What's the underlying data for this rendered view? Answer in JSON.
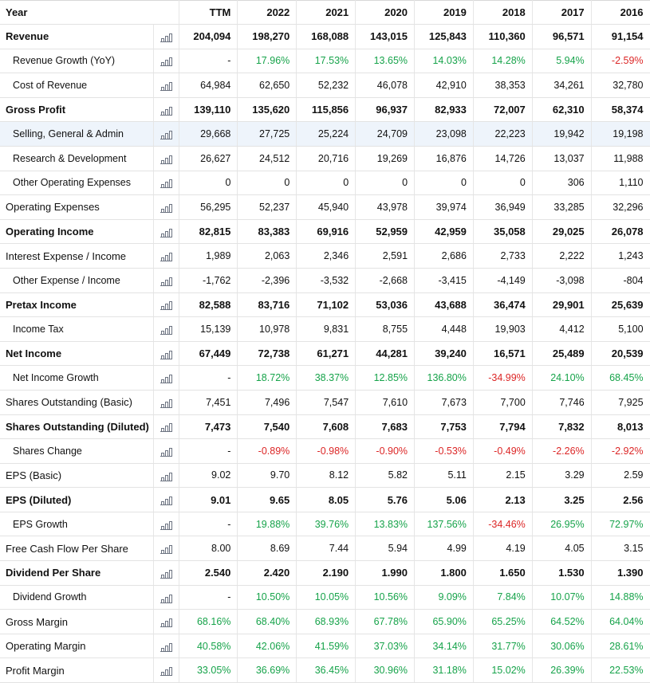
{
  "header": {
    "label": "Year",
    "columns": [
      "TTM",
      "2022",
      "2021",
      "2020",
      "2019",
      "2018",
      "2017",
      "2016"
    ]
  },
  "rows": [
    {
      "label": "Revenue",
      "bold": true,
      "sub": false,
      "values": [
        "204,094",
        "198,270",
        "168,088",
        "143,015",
        "125,843",
        "110,360",
        "96,571",
        "91,154"
      ]
    },
    {
      "label": "Revenue Growth (YoY)",
      "bold": false,
      "sub": true,
      "values": [
        "-",
        "17.96%",
        "17.53%",
        "13.65%",
        "14.03%",
        "14.28%",
        "5.94%",
        "-2.59%"
      ]
    },
    {
      "label": "Cost of Revenue",
      "bold": false,
      "sub": true,
      "values": [
        "64,984",
        "62,650",
        "52,232",
        "46,078",
        "42,910",
        "38,353",
        "34,261",
        "32,780"
      ]
    },
    {
      "label": "Gross Profit",
      "bold": true,
      "sub": false,
      "values": [
        "139,110",
        "135,620",
        "115,856",
        "96,937",
        "82,933",
        "72,007",
        "62,310",
        "58,374"
      ]
    },
    {
      "label": "Selling, General & Admin",
      "bold": false,
      "sub": true,
      "highlight": true,
      "values": [
        "29,668",
        "27,725",
        "25,224",
        "24,709",
        "23,098",
        "22,223",
        "19,942",
        "19,198"
      ]
    },
    {
      "label": "Research & Development",
      "bold": false,
      "sub": true,
      "values": [
        "26,627",
        "24,512",
        "20,716",
        "19,269",
        "16,876",
        "14,726",
        "13,037",
        "11,988"
      ]
    },
    {
      "label": "Other Operating Expenses",
      "bold": false,
      "sub": true,
      "values": [
        "0",
        "0",
        "0",
        "0",
        "0",
        "0",
        "306",
        "1,110"
      ]
    },
    {
      "label": "Operating Expenses",
      "bold": false,
      "sub": false,
      "values": [
        "56,295",
        "52,237",
        "45,940",
        "43,978",
        "39,974",
        "36,949",
        "33,285",
        "32,296"
      ]
    },
    {
      "label": "Operating Income",
      "bold": true,
      "sub": false,
      "values": [
        "82,815",
        "83,383",
        "69,916",
        "52,959",
        "42,959",
        "35,058",
        "29,025",
        "26,078"
      ]
    },
    {
      "label": "Interest Expense / Income",
      "bold": false,
      "sub": false,
      "values": [
        "1,989",
        "2,063",
        "2,346",
        "2,591",
        "2,686",
        "2,733",
        "2,222",
        "1,243"
      ]
    },
    {
      "label": "Other Expense / Income",
      "bold": false,
      "sub": true,
      "values": [
        "-1,762",
        "-2,396",
        "-3,532",
        "-2,668",
        "-3,415",
        "-4,149",
        "-3,098",
        "-804"
      ]
    },
    {
      "label": "Pretax Income",
      "bold": true,
      "sub": false,
      "values": [
        "82,588",
        "83,716",
        "71,102",
        "53,036",
        "43,688",
        "36,474",
        "29,901",
        "25,639"
      ]
    },
    {
      "label": "Income Tax",
      "bold": false,
      "sub": true,
      "values": [
        "15,139",
        "10,978",
        "9,831",
        "8,755",
        "4,448",
        "19,903",
        "4,412",
        "5,100"
      ]
    },
    {
      "label": "Net Income",
      "bold": true,
      "sub": false,
      "values": [
        "67,449",
        "72,738",
        "61,271",
        "44,281",
        "39,240",
        "16,571",
        "25,489",
        "20,539"
      ]
    },
    {
      "label": "Net Income Growth",
      "bold": false,
      "sub": true,
      "values": [
        "-",
        "18.72%",
        "38.37%",
        "12.85%",
        "136.80%",
        "-34.99%",
        "24.10%",
        "68.45%"
      ]
    },
    {
      "label": "Shares Outstanding (Basic)",
      "bold": false,
      "sub": false,
      "values": [
        "7,451",
        "7,496",
        "7,547",
        "7,610",
        "7,673",
        "7,700",
        "7,746",
        "7,925"
      ]
    },
    {
      "label": "Shares Outstanding (Diluted)",
      "bold": true,
      "sub": false,
      "values": [
        "7,473",
        "7,540",
        "7,608",
        "7,683",
        "7,753",
        "7,794",
        "7,832",
        "8,013"
      ]
    },
    {
      "label": "Shares Change",
      "bold": false,
      "sub": true,
      "values": [
        "-",
        "-0.89%",
        "-0.98%",
        "-0.90%",
        "-0.53%",
        "-0.49%",
        "-2.26%",
        "-2.92%"
      ]
    },
    {
      "label": "EPS (Basic)",
      "bold": false,
      "sub": false,
      "values": [
        "9.02",
        "9.70",
        "8.12",
        "5.82",
        "5.11",
        "2.15",
        "3.29",
        "2.59"
      ]
    },
    {
      "label": "EPS (Diluted)",
      "bold": true,
      "sub": false,
      "values": [
        "9.01",
        "9.65",
        "8.05",
        "5.76",
        "5.06",
        "2.13",
        "3.25",
        "2.56"
      ]
    },
    {
      "label": "EPS Growth",
      "bold": false,
      "sub": true,
      "values": [
        "-",
        "19.88%",
        "39.76%",
        "13.83%",
        "137.56%",
        "-34.46%",
        "26.95%",
        "72.97%"
      ]
    },
    {
      "label": "Free Cash Flow Per Share",
      "bold": false,
      "sub": false,
      "values": [
        "8.00",
        "8.69",
        "7.44",
        "5.94",
        "4.99",
        "4.19",
        "4.05",
        "3.15"
      ]
    },
    {
      "label": "Dividend Per Share",
      "bold": true,
      "sub": false,
      "values": [
        "2.540",
        "2.420",
        "2.190",
        "1.990",
        "1.800",
        "1.650",
        "1.530",
        "1.390"
      ]
    },
    {
      "label": "Dividend Growth",
      "bold": false,
      "sub": true,
      "values": [
        "-",
        "10.50%",
        "10.05%",
        "10.56%",
        "9.09%",
        "7.84%",
        "10.07%",
        "14.88%"
      ]
    },
    {
      "label": "Gross Margin",
      "bold": false,
      "sub": false,
      "values": [
        "68.16%",
        "68.40%",
        "68.93%",
        "67.78%",
        "65.90%",
        "65.25%",
        "64.52%",
        "64.04%"
      ]
    },
    {
      "label": "Operating Margin",
      "bold": false,
      "sub": false,
      "values": [
        "40.58%",
        "42.06%",
        "41.59%",
        "37.03%",
        "34.14%",
        "31.77%",
        "30.06%",
        "28.61%"
      ]
    },
    {
      "label": "Profit Margin",
      "bold": false,
      "sub": false,
      "values": [
        "33.05%",
        "36.69%",
        "36.45%",
        "30.96%",
        "31.18%",
        "15.02%",
        "26.39%",
        "22.53%"
      ]
    }
  ],
  "colors": {
    "positive": "#16a34a",
    "negative": "#dc2626",
    "highlight_row": "#eef4fb"
  },
  "icons": {
    "row_chart": "bar-chart-icon"
  }
}
